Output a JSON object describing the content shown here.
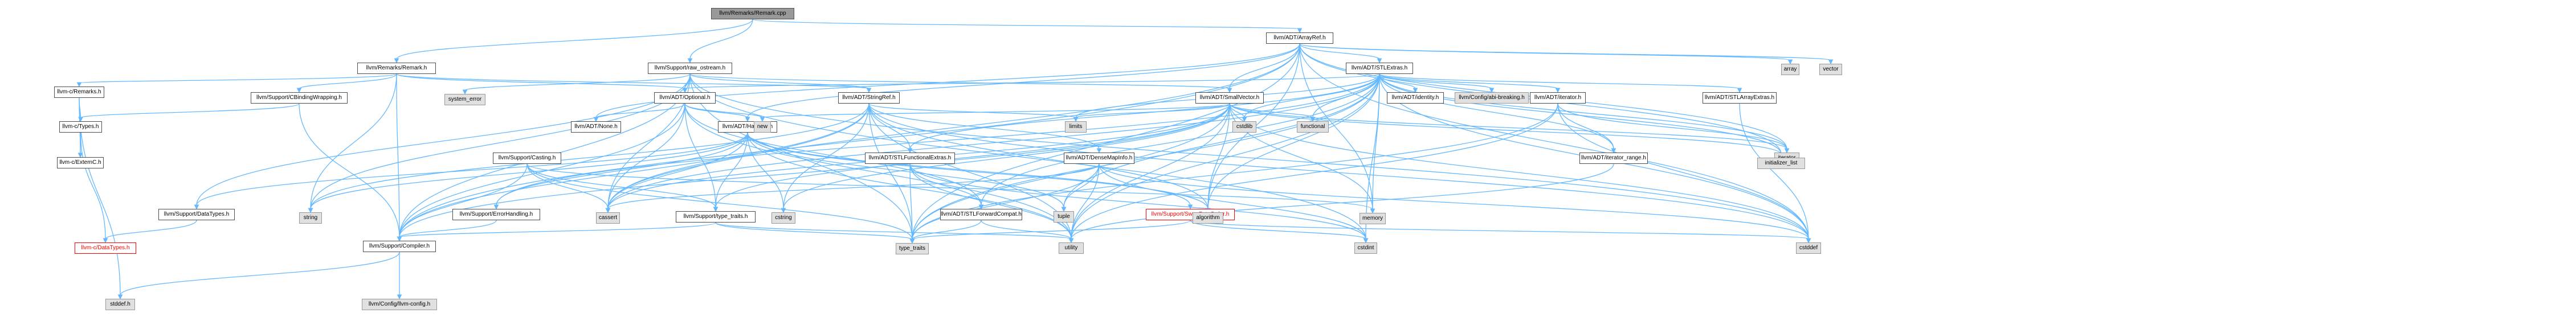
{
  "nodes": [
    {
      "id": "root",
      "label": "llvm/Remarks/Remark.cpp",
      "kind": "root",
      "link": false
    },
    {
      "id": "remark_h",
      "label": "llvm/Remarks/Remark.h",
      "kind": "header",
      "link": true
    },
    {
      "id": "raw_ostream",
      "label": "llvm/Support/raw_ostream.h",
      "kind": "header",
      "link": true
    },
    {
      "id": "arrayref",
      "label": "llvm/ADT/ArrayRef.h",
      "kind": "header",
      "link": true
    },
    {
      "id": "c_remarks",
      "label": "llvm-c/Remarks.h",
      "kind": "header",
      "link": true
    },
    {
      "id": "c_types",
      "label": "llvm-c/Types.h",
      "kind": "header",
      "link": true
    },
    {
      "id": "c_externc",
      "label": "llvm-c/ExternC.h",
      "kind": "header",
      "link": true
    },
    {
      "id": "c_datatypes",
      "label": "llvm-c/DataTypes.h",
      "kind": "red",
      "link": true
    },
    {
      "id": "stddef_h",
      "label": "stddef.h",
      "kind": "system",
      "link": false
    },
    {
      "id": "cbinding",
      "label": "llvm/Support/CBindingWrapping.h",
      "kind": "header",
      "link": true
    },
    {
      "id": "support_datatypes",
      "label": "llvm/Support/DataTypes.h",
      "kind": "header",
      "link": true
    },
    {
      "id": "compiler",
      "label": "llvm/Support/Compiler.h",
      "kind": "header",
      "link": true
    },
    {
      "id": "llvm_config",
      "label": "llvm/Config/llvm-config.h",
      "kind": "system",
      "link": false
    },
    {
      "id": "system_error",
      "label": "system_error",
      "kind": "system",
      "link": false
    },
    {
      "id": "casting",
      "label": "llvm/Support/Casting.h",
      "kind": "header",
      "link": true
    },
    {
      "id": "error_handling",
      "label": "llvm/Support/ErrorHandling.h",
      "kind": "header",
      "link": true
    },
    {
      "id": "optional",
      "label": "llvm/ADT/Optional.h",
      "kind": "header",
      "link": true
    },
    {
      "id": "none",
      "label": "llvm/ADT/None.h",
      "kind": "header",
      "link": true
    },
    {
      "id": "hashing",
      "label": "llvm/ADT/Hashing.h",
      "kind": "header",
      "link": true
    },
    {
      "id": "type_traits_h",
      "label": "llvm/Support/type_traits.h",
      "kind": "header",
      "link": true
    },
    {
      "id": "stringref",
      "label": "llvm/ADT/StringRef.h",
      "kind": "header",
      "link": true
    },
    {
      "id": "stl_func_extras",
      "label": "llvm/ADT/STLFunctionalExtras.h",
      "kind": "header",
      "link": true
    },
    {
      "id": "stl_forward_compat",
      "label": "llvm/ADT/STLForwardCompat.h",
      "kind": "header",
      "link": true
    },
    {
      "id": "dense_map_info",
      "label": "llvm/ADT/DenseMapInfo.h",
      "kind": "header",
      "link": true
    },
    {
      "id": "smallvector",
      "label": "llvm/ADT/SmallVector.h",
      "kind": "header",
      "link": true
    },
    {
      "id": "stl_extras",
      "label": "llvm/ADT/STLExtras.h",
      "kind": "header",
      "link": true
    },
    {
      "id": "identity",
      "label": "llvm/ADT/identity.h",
      "kind": "header",
      "link": true
    },
    {
      "id": "abi_breaking",
      "label": "llvm/Config/abi-breaking.h",
      "kind": "system",
      "link": false
    },
    {
      "id": "iterator_h",
      "label": "llvm/ADT/iterator.h",
      "kind": "header",
      "link": true
    },
    {
      "id": "iterator_range",
      "label": "llvm/ADT/iterator_range.h",
      "kind": "header",
      "link": true
    },
    {
      "id": "stl_array_extras",
      "label": "llvm/ADT/STLArrayExtras.h",
      "kind": "header",
      "link": true
    },
    {
      "id": "swap_byte_order",
      "label": "llvm/Support/SwapByteOrder.h",
      "kind": "red",
      "link": true
    },
    {
      "id": "s_string",
      "label": "string",
      "kind": "system",
      "link": false
    },
    {
      "id": "s_cassert",
      "label": "cassert",
      "kind": "system",
      "link": false
    },
    {
      "id": "s_cstring",
      "label": "cstring",
      "kind": "system",
      "link": false
    },
    {
      "id": "s_new",
      "label": "new",
      "kind": "system",
      "link": false
    },
    {
      "id": "s_tuple",
      "label": "tuple",
      "kind": "system",
      "link": false
    },
    {
      "id": "s_type_traits",
      "label": "type_traits",
      "kind": "system",
      "link": false
    },
    {
      "id": "s_utility",
      "label": "utility",
      "kind": "system",
      "link": false
    },
    {
      "id": "s_limits",
      "label": "limits",
      "kind": "system",
      "link": false
    },
    {
      "id": "s_cstdlib",
      "label": "cstdlib",
      "kind": "system",
      "link": false
    },
    {
      "id": "s_functional",
      "label": "functional",
      "kind": "system",
      "link": false
    },
    {
      "id": "s_algorithm",
      "label": "algorithm",
      "kind": "system",
      "link": false
    },
    {
      "id": "s_memory",
      "label": "memory",
      "kind": "system",
      "link": false
    },
    {
      "id": "s_cstdint",
      "label": "cstdint",
      "kind": "system",
      "link": false
    },
    {
      "id": "s_cstddef",
      "label": "cstddef",
      "kind": "system",
      "link": false
    },
    {
      "id": "s_iterator",
      "label": "iterator",
      "kind": "system",
      "link": false
    },
    {
      "id": "s_initializer_list",
      "label": "initializer_list",
      "kind": "system",
      "link": false
    },
    {
      "id": "s_array",
      "label": "array",
      "kind": "system",
      "link": false
    },
    {
      "id": "s_vector",
      "label": "vector",
      "kind": "system",
      "link": false
    }
  ],
  "edges": [
    [
      "root",
      "remark_h"
    ],
    [
      "root",
      "raw_ostream"
    ],
    [
      "root",
      "arrayref"
    ],
    [
      "remark_h",
      "c_remarks"
    ],
    [
      "remark_h",
      "cbinding"
    ],
    [
      "remark_h",
      "optional"
    ],
    [
      "remark_h",
      "stringref"
    ],
    [
      "remark_h",
      "compiler"
    ],
    [
      "remark_h",
      "s_string"
    ],
    [
      "c_remarks",
      "c_types"
    ],
    [
      "c_remarks",
      "c_externc"
    ],
    [
      "c_remarks",
      "stddef_h"
    ],
    [
      "c_types",
      "c_datatypes"
    ],
    [
      "c_types",
      "c_externc"
    ],
    [
      "cbinding",
      "c_types"
    ],
    [
      "cbinding",
      "compiler"
    ],
    [
      "raw_ostream",
      "support_datatypes"
    ],
    [
      "raw_ostream",
      "system_error"
    ],
    [
      "raw_ostream",
      "compiler"
    ],
    [
      "raw_ostream",
      "optional"
    ],
    [
      "raw_ostream",
      "stringref"
    ],
    [
      "raw_ostream",
      "smallvector"
    ],
    [
      "raw_ostream",
      "s_cassert"
    ],
    [
      "raw_ostream",
      "s_cstddef"
    ],
    [
      "raw_ostream",
      "s_cstdint"
    ],
    [
      "raw_ostream",
      "s_string"
    ],
    [
      "raw_ostream",
      "s_type_traits"
    ],
    [
      "support_datatypes",
      "c_datatypes"
    ],
    [
      "compiler",
      "llvm_config"
    ],
    [
      "compiler",
      "stddef_h"
    ],
    [
      "optional",
      "none"
    ],
    [
      "optional",
      "stl_forward_compat"
    ],
    [
      "optional",
      "compiler"
    ],
    [
      "optional",
      "type_traits_h"
    ],
    [
      "optional",
      "hashing"
    ],
    [
      "optional",
      "s_cassert"
    ],
    [
      "optional",
      "s_new"
    ],
    [
      "optional",
      "s_utility"
    ],
    [
      "hashing",
      "error_handling"
    ],
    [
      "hashing",
      "support_datatypes"
    ],
    [
      "hashing",
      "swap_byte_order"
    ],
    [
      "hashing",
      "type_traits_h"
    ],
    [
      "hashing",
      "s_algorithm"
    ],
    [
      "hashing",
      "s_cassert"
    ],
    [
      "hashing",
      "s_cstring"
    ],
    [
      "hashing",
      "s_string"
    ],
    [
      "hashing",
      "s_tuple"
    ],
    [
      "hashing",
      "s_utility"
    ],
    [
      "error_handling",
      "compiler"
    ],
    [
      "type_traits_h",
      "compiler"
    ],
    [
      "type_traits_h",
      "s_type_traits"
    ],
    [
      "type_traits_h",
      "s_utility"
    ],
    [
      "casting",
      "compiler"
    ],
    [
      "casting",
      "type_traits_h"
    ],
    [
      "casting",
      "s_cassert"
    ],
    [
      "casting",
      "s_memory"
    ],
    [
      "casting",
      "s_type_traits"
    ],
    [
      "stringref",
      "stl_func_extras"
    ],
    [
      "stringref",
      "dense_map_info"
    ],
    [
      "stringref",
      "compiler"
    ],
    [
      "stringref",
      "s_algorithm"
    ],
    [
      "stringref",
      "s_cassert"
    ],
    [
      "stringref",
      "s_cstddef"
    ],
    [
      "stringref",
      "s_cstring"
    ],
    [
      "stringref",
      "s_limits"
    ],
    [
      "stringref",
      "s_string"
    ],
    [
      "stringref",
      "s_type_traits"
    ],
    [
      "stringref",
      "s_utility"
    ],
    [
      "stl_func_extras",
      "stl_forward_compat"
    ],
    [
      "stl_func_extras",
      "s_cstdint"
    ],
    [
      "stl_func_extras",
      "s_type_traits"
    ],
    [
      "stl_func_extras",
      "s_utility"
    ],
    [
      "stl_forward_compat",
      "s_type_traits"
    ],
    [
      "stl_forward_compat",
      "s_utility"
    ],
    [
      "dense_map_info",
      "s_cassert"
    ],
    [
      "dense_map_info",
      "s_cstddef"
    ],
    [
      "dense_map_info",
      "s_cstdint"
    ],
    [
      "dense_map_info",
      "s_tuple"
    ],
    [
      "dense_map_info",
      "s_type_traits"
    ],
    [
      "dense_map_info",
      "s_utility"
    ],
    [
      "smallvector",
      "compiler"
    ],
    [
      "smallvector",
      "type_traits_h"
    ],
    [
      "smallvector",
      "s_algorithm"
    ],
    [
      "smallvector",
      "s_cassert"
    ],
    [
      "smallvector",
      "s_cstddef"
    ],
    [
      "smallvector",
      "s_cstdlib"
    ],
    [
      "smallvector",
      "s_cstring"
    ],
    [
      "smallvector",
      "s_functional"
    ],
    [
      "smallvector",
      "s_initializer_list"
    ],
    [
      "smallvector",
      "s_iterator"
    ],
    [
      "smallvector",
      "s_limits"
    ],
    [
      "smallvector",
      "s_memory"
    ],
    [
      "smallvector",
      "s_new"
    ],
    [
      "smallvector",
      "s_type_traits"
    ],
    [
      "smallvector",
      "s_utility"
    ],
    [
      "arrayref",
      "hashing"
    ],
    [
      "arrayref",
      "none"
    ],
    [
      "arrayref",
      "smallvector"
    ],
    [
      "arrayref",
      "stl_extras"
    ],
    [
      "arrayref",
      "compiler"
    ],
    [
      "arrayref",
      "s_algorithm"
    ],
    [
      "arrayref",
      "s_array"
    ],
    [
      "arrayref",
      "s_cassert"
    ],
    [
      "arrayref",
      "s_cstddef"
    ],
    [
      "arrayref",
      "s_initializer_list"
    ],
    [
      "arrayref",
      "s_iterator"
    ],
    [
      "arrayref",
      "s_memory"
    ],
    [
      "arrayref",
      "s_type_traits"
    ],
    [
      "arrayref",
      "s_vector"
    ],
    [
      "stl_extras",
      "optional"
    ],
    [
      "stl_extras",
      "stl_array_extras"
    ],
    [
      "stl_extras",
      "stl_forward_compat"
    ],
    [
      "stl_extras",
      "stl_func_extras"
    ],
    [
      "stl_extras",
      "identity"
    ],
    [
      "stl_extras",
      "iterator_h"
    ],
    [
      "stl_extras",
      "iterator_range"
    ],
    [
      "stl_extras",
      "abi_breaking"
    ],
    [
      "stl_extras",
      "error_handling"
    ],
    [
      "stl_extras",
      "s_algorithm"
    ],
    [
      "stl_extras",
      "s_cassert"
    ],
    [
      "stl_extras",
      "s_cstddef"
    ],
    [
      "stl_extras",
      "s_cstdint"
    ],
    [
      "stl_extras",
      "s_cstdlib"
    ],
    [
      "stl_extras",
      "s_functional"
    ],
    [
      "stl_extras",
      "s_initializer_list"
    ],
    [
      "stl_extras",
      "s_iterator"
    ],
    [
      "stl_extras",
      "s_limits"
    ],
    [
      "stl_extras",
      "s_memory"
    ],
    [
      "stl_extras",
      "s_tuple"
    ],
    [
      "stl_extras",
      "s_type_traits"
    ],
    [
      "stl_extras",
      "s_utility"
    ],
    [
      "iterator_h",
      "iterator_range"
    ],
    [
      "iterator_h",
      "s_cstddef"
    ],
    [
      "iterator_h",
      "s_iterator"
    ],
    [
      "iterator_h",
      "s_type_traits"
    ],
    [
      "iterator_h",
      "s_utility"
    ],
    [
      "iterator_range",
      "s_utility"
    ],
    [
      "stl_array_extras",
      "s_cstddef"
    ],
    [
      "swap_byte_order",
      "s_cstddef"
    ],
    [
      "swap_byte_order",
      "s_cstdint"
    ],
    [
      "swap_byte_order",
      "s_type_traits"
    ]
  ]
}
